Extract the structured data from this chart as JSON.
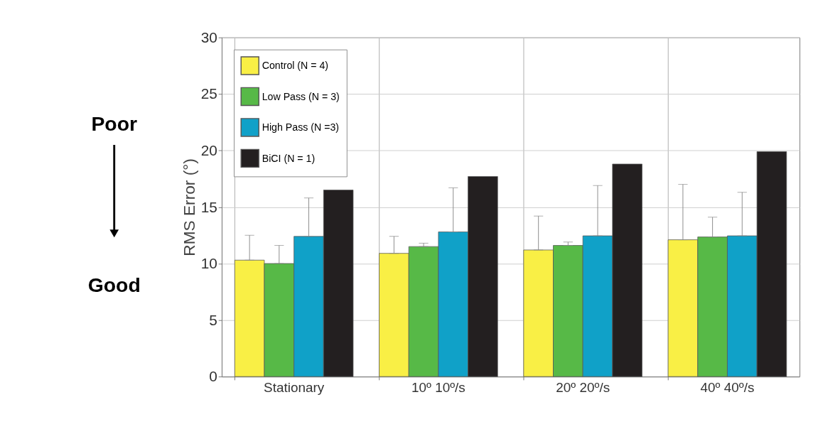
{
  "chart_data": {
    "type": "bar",
    "ylabel": "RMS Error (°)",
    "categories": [
      "Stationary",
      "10º 10º/s",
      "20º 20º/s",
      "40º 40º/s"
    ],
    "series": [
      {
        "name": "Control (N = 4)",
        "color": "#f9ef45",
        "values": [
          10.3,
          10.9,
          11.2,
          12.1
        ],
        "errors": [
          [
            10.3,
            12.5
          ],
          [
            10.9,
            12.4
          ],
          [
            11.2,
            14.2
          ],
          [
            12.1,
            17.0
          ]
        ]
      },
      {
        "name": "Low Pass (N = 3)",
        "color": "#57b947",
        "values": [
          10.0,
          11.5,
          11.6,
          12.35
        ],
        "errors": [
          [
            10.0,
            11.6
          ],
          [
            11.5,
            11.8
          ],
          [
            11.6,
            11.9
          ],
          [
            12.35,
            14.1
          ]
        ]
      },
      {
        "name": "High Pass (N =3)",
        "color": "#10a1c8",
        "values": [
          12.4,
          12.8,
          12.45,
          12.45
        ],
        "errors": [
          [
            12.4,
            15.8
          ],
          [
            12.8,
            16.7
          ],
          [
            12.45,
            16.9
          ],
          [
            12.45,
            16.3
          ]
        ]
      },
      {
        "name": "BiCI (N = 1)",
        "color": "#231f20",
        "values": [
          16.5,
          17.7,
          18.8,
          19.9
        ]
      }
    ],
    "ylim": [
      0,
      30
    ],
    "yticks": [
      0,
      5,
      10,
      15,
      20,
      25,
      30
    ],
    "grid": true,
    "legend": "top left",
    "annotations": [
      "Poor",
      "Good"
    ]
  }
}
